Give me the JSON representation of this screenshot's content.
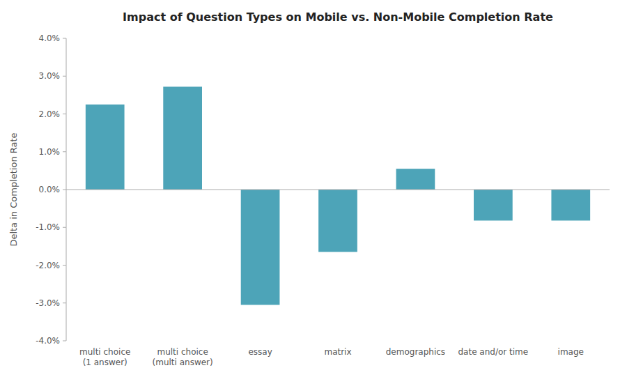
{
  "chart_data": {
    "type": "bar",
    "title": "Impact of Question Types on Mobile vs. Non-Mobile Completion Rate",
    "y_label": "Delta in Completion Rate",
    "categories": [
      "multi choice\n(1 answer)",
      "multi choice\n(multi answer)",
      "essay",
      "matrix",
      "demographics",
      "date and/or time",
      "image"
    ],
    "values": [
      0.0225,
      0.0272,
      -0.0305,
      -0.0165,
      0.0055,
      -0.0082,
      -0.0082
    ],
    "color": "#4da4b8",
    "ylim": [
      -0.04,
      0.04
    ],
    "yticks": [
      {
        "value": -0.04,
        "label": "-4.0%"
      },
      {
        "value": -0.03,
        "label": "-3.0%"
      },
      {
        "value": -0.02,
        "label": "-2.0%"
      },
      {
        "value": -0.01,
        "label": "-1.0%"
      },
      {
        "value": 0.0,
        "label": "0.0%"
      },
      {
        "value": 0.01,
        "label": "1.0%"
      },
      {
        "value": 0.02,
        "label": "2.0%"
      },
      {
        "value": 0.03,
        "label": "3.0%"
      },
      {
        "value": 0.04,
        "label": "4.0%"
      }
    ],
    "grid": false
  }
}
